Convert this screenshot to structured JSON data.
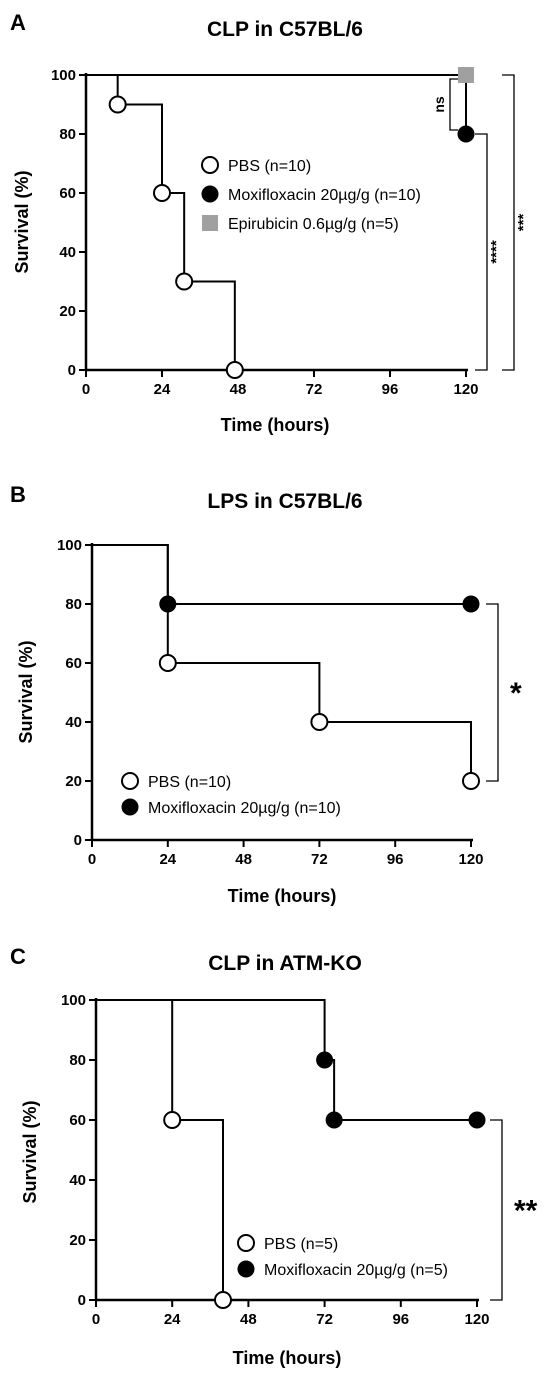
{
  "chart_data": [
    {
      "type": "line",
      "panel_label": "A",
      "title": "CLP in C57BL/6",
      "xlabel": "Time (hours)",
      "ylabel": "Survival (%)",
      "xlim": [
        0,
        120
      ],
      "ylim": [
        0,
        100
      ],
      "xticks": [
        "0",
        "24",
        "48",
        "72",
        "96",
        "120"
      ],
      "yticks": [
        "0",
        "20",
        "40",
        "60",
        "80",
        "100"
      ],
      "grid": false,
      "legend_position": "center",
      "series": [
        {
          "name": "PBS (n=10)",
          "marker": "open-circle",
          "step": [
            [
              0,
              100
            ],
            [
              10,
              100
            ],
            [
              10,
              90
            ],
            [
              24,
              90
            ],
            [
              24,
              60
            ],
            [
              31,
              60
            ],
            [
              31,
              30
            ],
            [
              47,
              30
            ],
            [
              47,
              0
            ]
          ],
          "points": [
            [
              10,
              90
            ],
            [
              24,
              60
            ],
            [
              31,
              30
            ],
            [
              47,
              0
            ]
          ]
        },
        {
          "name": "Moxifloxacin 20µg/g (n=10)",
          "marker": "filled-circle",
          "step": [
            [
              0,
              100
            ],
            [
              120,
              100
            ],
            [
              120,
              80
            ]
          ],
          "points": [
            [
              120,
              80
            ]
          ]
        },
        {
          "name": "Epirubicin 0.6µg/g (n=5)",
          "marker": "gray-square",
          "step": [
            [
              0,
              100
            ],
            [
              120,
              100
            ]
          ],
          "points": [
            [
              120,
              100
            ]
          ]
        }
      ],
      "annotations": [
        {
          "text": "ns",
          "y1": 100,
          "y2": 80,
          "offset": 1
        },
        {
          "text": "****",
          "y1": 80,
          "y2": 0,
          "offset": 2
        },
        {
          "text": "***",
          "y1": 100,
          "y2": 0,
          "offset": 3
        }
      ]
    },
    {
      "type": "line",
      "panel_label": "B",
      "title": "LPS in C57BL/6",
      "xlabel": "Time (hours)",
      "ylabel": "Survival (%)",
      "xlim": [
        0,
        120
      ],
      "ylim": [
        0,
        100
      ],
      "xticks": [
        "0",
        "24",
        "48",
        "72",
        "96",
        "120"
      ],
      "yticks": [
        "0",
        "20",
        "40",
        "60",
        "80",
        "100"
      ],
      "grid": false,
      "legend_position": "bottom-left",
      "series": [
        {
          "name": "PBS (n=10)",
          "marker": "open-circle",
          "step": [
            [
              0,
              100
            ],
            [
              24,
              100
            ],
            [
              24,
              60
            ],
            [
              72,
              60
            ],
            [
              72,
              40
            ],
            [
              120,
              40
            ],
            [
              120,
              20
            ]
          ],
          "points": [
            [
              24,
              60
            ],
            [
              72,
              40
            ],
            [
              120,
              20
            ]
          ]
        },
        {
          "name": "Moxifloxacin 20µg/g (n=10)",
          "marker": "filled-circle",
          "step": [
            [
              0,
              100
            ],
            [
              24,
              100
            ],
            [
              24,
              80
            ],
            [
              120,
              80
            ]
          ],
          "points": [
            [
              24,
              80
            ],
            [
              120,
              80
            ]
          ]
        }
      ],
      "annotations": [
        {
          "text": "*",
          "y1": 80,
          "y2": 20,
          "offset": 1
        }
      ]
    },
    {
      "type": "line",
      "panel_label": "C",
      "title": "CLP in ATM-KO",
      "xlabel": "Time (hours)",
      "ylabel": "Survival (%)",
      "xlim": [
        0,
        120
      ],
      "ylim": [
        0,
        100
      ],
      "xticks": [
        "0",
        "24",
        "48",
        "72",
        "96",
        "120"
      ],
      "yticks": [
        "0",
        "20",
        "40",
        "60",
        "80",
        "100"
      ],
      "grid": false,
      "legend_position": "bottom-right",
      "series": [
        {
          "name": "PBS (n=5)",
          "marker": "open-circle",
          "step": [
            [
              0,
              100
            ],
            [
              24,
              100
            ],
            [
              24,
              60
            ],
            [
              40,
              60
            ],
            [
              40,
              0
            ]
          ],
          "points": [
            [
              24,
              60
            ],
            [
              40,
              0
            ]
          ]
        },
        {
          "name": "Moxifloxacin 20µg/g (n=5)",
          "marker": "filled-circle",
          "step": [
            [
              0,
              100
            ],
            [
              72,
              100
            ],
            [
              72,
              80
            ],
            [
              75,
              80
            ],
            [
              75,
              60
            ],
            [
              120,
              60
            ]
          ],
          "points": [
            [
              72,
              80
            ],
            [
              75,
              60
            ],
            [
              120,
              60
            ]
          ]
        }
      ],
      "annotations": [
        {
          "text": "**",
          "y1": 60,
          "y2": 0,
          "offset": 1
        }
      ]
    }
  ]
}
